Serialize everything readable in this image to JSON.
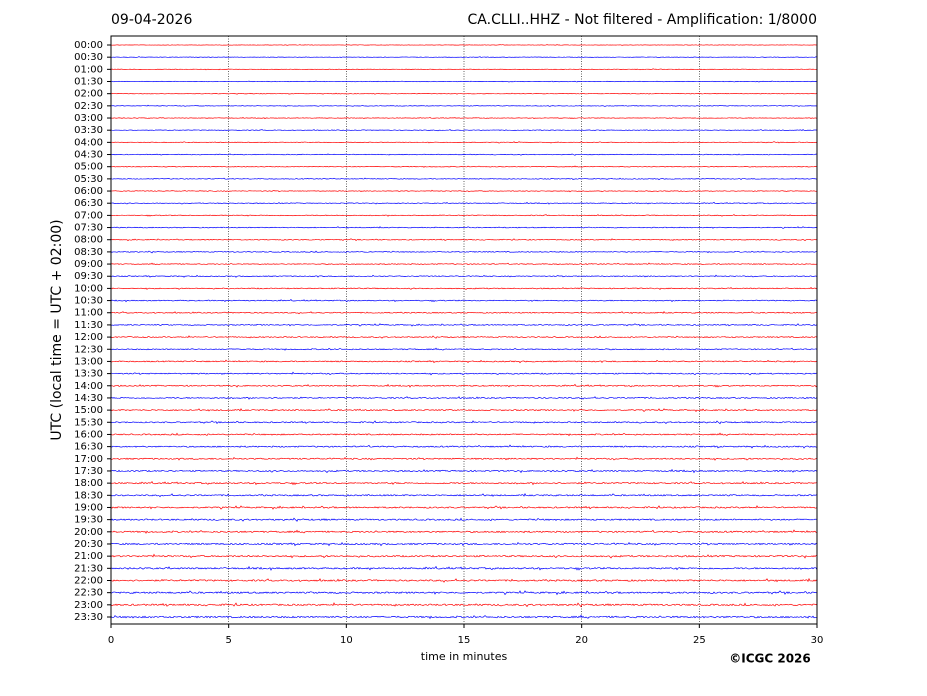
{
  "chart_data": {
    "type": "helicorder",
    "date": "09-04-2026",
    "title": "CA.CLLI..HHZ - Not filtered - Amplification: 1/8000",
    "ylabel": "UTC (local time = UTC + 02:00)",
    "xlabel": "time in minutes",
    "rows": [
      "00:00",
      "00:30",
      "01:00",
      "01:30",
      "02:00",
      "02:30",
      "03:00",
      "03:30",
      "04:00",
      "04:30",
      "05:00",
      "05:30",
      "06:00",
      "06:30",
      "07:00",
      "07:30",
      "08:00",
      "08:30",
      "09:00",
      "09:30",
      "10:00",
      "10:30",
      "11:00",
      "11:30",
      "12:00",
      "12:30",
      "13:00",
      "13:30",
      "14:00",
      "14:30",
      "15:00",
      "15:30",
      "16:00",
      "16:30",
      "17:00",
      "17:30",
      "18:00",
      "18:30",
      "19:00",
      "19:30",
      "20:00",
      "20:30",
      "21:00",
      "21:30",
      "22:00",
      "22:30",
      "23:00",
      "23:30"
    ],
    "colors": [
      "#ff0000",
      "#0000ff"
    ],
    "xlim": [
      0,
      30
    ],
    "xticks": [
      0,
      5,
      10,
      15,
      20,
      25,
      30
    ],
    "grid": true
  },
  "copyright": "©ICGC 2026"
}
